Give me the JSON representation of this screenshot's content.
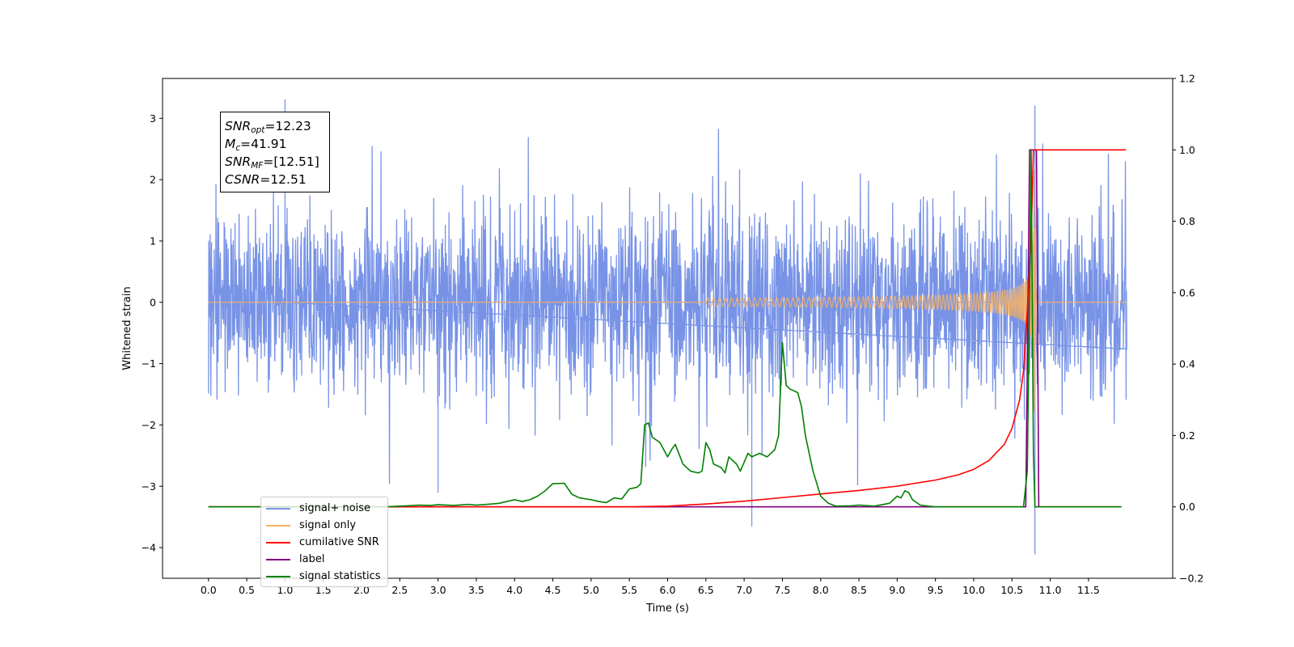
{
  "chart_data": {
    "type": "line",
    "xlabel": "Time (s)",
    "ylabel": "Whitened strain",
    "xlim": [
      -0.6,
      12.6
    ],
    "ylim": [
      -4.5,
      3.65
    ],
    "y2lim": [
      -0.2,
      1.2
    ],
    "xticks": [
      0.0,
      0.5,
      1.0,
      1.5,
      2.0,
      2.5,
      3.0,
      3.5,
      4.0,
      4.5,
      5.0,
      5.5,
      6.0,
      6.5,
      7.0,
      7.5,
      8.0,
      8.5,
      9.0,
      9.5,
      10.0,
      10.5,
      11.0,
      11.5
    ],
    "yticks": [
      -4,
      -3,
      -2,
      -1,
      0,
      1,
      2,
      3
    ],
    "y2ticks": [
      -0.2,
      0.0,
      0.2,
      0.4,
      0.6,
      0.8,
      1.0,
      1.2
    ],
    "grid": false,
    "legend_position": "lower-left",
    "colors": {
      "signal_noise": "#7893e6",
      "signal_only": "#f5b266",
      "cumulative_snr": "#ff0000",
      "label": "#800080",
      "signal_statistics": "#008000"
    },
    "annotation": {
      "snr_opt_symbol": "SNR",
      "snr_opt_sub": "opt",
      "snr_opt_value": "=12.23",
      "mc_symbol": "M",
      "mc_sub": "c",
      "mc_value": "=41.91",
      "snr_mf_symbol": "SNR",
      "snr_mf_sub": "MF",
      "snr_mf_value": "=[12.51]",
      "csnr_symbol": "CSNR",
      "csnr_value": "=12.51"
    },
    "series": [
      {
        "name": "signal+ noise",
        "axis": "left",
        "description_values": "noise trace, roughly ±1.5 with spikes to ±3 across 0–12 s",
        "x_range": [
          0.0,
          12.0
        ],
        "extremes": [
          {
            "x": 1.0,
            "y": 3.3
          },
          {
            "x": 10.8,
            "y": 3.2
          },
          {
            "x": 10.8,
            "y": -4.1
          },
          {
            "x": 7.1,
            "y": -3.65
          },
          {
            "x": 3.0,
            "y": -3.1
          }
        ]
      },
      {
        "name": "signal only",
        "axis": "left",
        "chirp_start": 6.5,
        "merger_time": 10.78,
        "peak_amplitude": 2.6
      },
      {
        "name": "cumilative SNR",
        "axis": "right",
        "x": [
          0.0,
          5.5,
          6.0,
          6.5,
          7.0,
          7.5,
          8.0,
          8.5,
          9.0,
          9.5,
          9.8,
          10.0,
          10.2,
          10.4,
          10.5,
          10.6,
          10.65,
          10.7,
          10.75,
          10.78,
          10.8,
          11.0,
          11.5,
          11.99
        ],
        "y": [
          0.0,
          0.0,
          0.002,
          0.008,
          0.016,
          0.026,
          0.036,
          0.046,
          0.058,
          0.075,
          0.09,
          0.105,
          0.13,
          0.175,
          0.22,
          0.3,
          0.38,
          0.55,
          0.75,
          1.0,
          1.0,
          1.0,
          1.0,
          1.0
        ]
      },
      {
        "name": "label",
        "axis": "right",
        "x": [
          0.0,
          10.68,
          10.73,
          10.82,
          10.85,
          11.93
        ],
        "y": [
          0.0,
          0.0,
          1.0,
          1.0,
          0.0,
          0.0
        ]
      },
      {
        "name": "signal statistics",
        "axis": "right",
        "x": [
          0.0,
          2.3,
          2.6,
          2.75,
          2.9,
          3.0,
          3.2,
          3.4,
          3.5,
          3.7,
          3.8,
          3.9,
          4.0,
          4.1,
          4.2,
          4.3,
          4.4,
          4.5,
          4.65,
          4.75,
          4.85,
          5.0,
          5.1,
          5.2,
          5.3,
          5.4,
          5.5,
          5.6,
          5.65,
          5.7,
          5.75,
          5.8,
          5.9,
          6.0,
          6.05,
          6.1,
          6.2,
          6.3,
          6.4,
          6.45,
          6.5,
          6.55,
          6.6,
          6.7,
          6.75,
          6.8,
          6.9,
          6.95,
          7.0,
          7.05,
          7.1,
          7.2,
          7.3,
          7.4,
          7.45,
          7.5,
          7.55,
          7.6,
          7.7,
          7.75,
          7.8,
          7.9,
          8.0,
          8.1,
          8.2,
          8.4,
          8.5,
          8.7,
          8.9,
          9.0,
          9.05,
          9.1,
          9.15,
          9.2,
          9.3,
          9.4,
          9.5,
          9.8,
          10.5,
          10.65,
          10.7,
          10.73,
          10.75,
          10.78,
          10.8,
          10.83,
          11.0,
          11.5,
          11.93
        ],
        "y": [
          0.0,
          0.0,
          0.003,
          0.005,
          0.004,
          0.006,
          0.004,
          0.007,
          0.005,
          0.008,
          0.01,
          0.015,
          0.02,
          0.015,
          0.02,
          0.03,
          0.045,
          0.065,
          0.066,
          0.035,
          0.025,
          0.02,
          0.015,
          0.012,
          0.025,
          0.022,
          0.05,
          0.055,
          0.065,
          0.23,
          0.235,
          0.195,
          0.18,
          0.14,
          0.16,
          0.175,
          0.12,
          0.1,
          0.095,
          0.1,
          0.18,
          0.16,
          0.12,
          0.11,
          0.095,
          0.14,
          0.12,
          0.1,
          0.125,
          0.15,
          0.14,
          0.15,
          0.14,
          0.16,
          0.2,
          0.46,
          0.34,
          0.33,
          0.32,
          0.28,
          0.2,
          0.1,
          0.03,
          0.01,
          0.002,
          0.003,
          0.005,
          0.002,
          0.01,
          0.03,
          0.025,
          0.045,
          0.04,
          0.02,
          0.005,
          0.002,
          0.0,
          0.0,
          0.0,
          0.0,
          0.1,
          0.6,
          1.0,
          0.15,
          0.0,
          0.0,
          0.0,
          0.0,
          0.0
        ]
      }
    ]
  },
  "legend": {
    "items": [
      {
        "label": "signal+ noise",
        "color": "#7893e6"
      },
      {
        "label": "signal only",
        "color": "#f5b266"
      },
      {
        "label": "cumilative SNR",
        "color": "#ff0000"
      },
      {
        "label": "label",
        "color": "#800080"
      },
      {
        "label": "signal statistics",
        "color": "#008000"
      }
    ]
  }
}
